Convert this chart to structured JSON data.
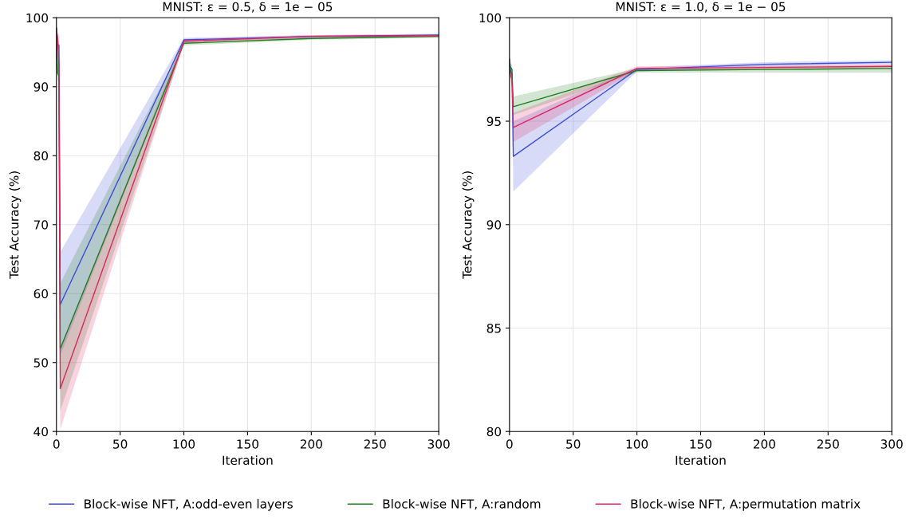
{
  "chart_data": [
    {
      "type": "line",
      "title": "MNIST: ε = 0.5, δ = 1e − 05",
      "xlabel": "Iteration",
      "ylabel": "Test Accuracy (%)",
      "xlim": [
        0,
        300
      ],
      "ylim": [
        40,
        100
      ],
      "xticks": [
        0,
        50,
        100,
        150,
        200,
        250,
        300
      ],
      "yticks": [
        40,
        50,
        60,
        70,
        80,
        90,
        100
      ],
      "grid": true,
      "legend": "bottom",
      "series": [
        {
          "name": "Block-wise NFT, A:odd-even layers",
          "color": "#3b4ad8",
          "x": [
            0,
            1,
            2,
            3,
            100,
            200,
            300
          ],
          "values": [
            98.5,
            96.2,
            96.0,
            58.4,
            96.8,
            97.3,
            97.5
          ],
          "lower": [
            98.0,
            95.5,
            95.3,
            51.0,
            96.5,
            97.1,
            97.3
          ],
          "upper": [
            99.0,
            96.8,
            96.6,
            66.0,
            97.1,
            97.5,
            97.7
          ]
        },
        {
          "name": "Block-wise NFT, A:random",
          "color": "#1e7d1e",
          "x": [
            0,
            1,
            2,
            3,
            100,
            200,
            300
          ],
          "values": [
            98.0,
            92.0,
            91.5,
            52.0,
            96.3,
            97.0,
            97.3
          ],
          "lower": [
            97.5,
            91.0,
            90.5,
            43.0,
            96.0,
            96.8,
            97.1
          ],
          "upper": [
            98.5,
            93.0,
            92.5,
            61.5,
            96.6,
            97.2,
            97.5
          ]
        },
        {
          "name": "Block-wise NFT, A:permutation matrix",
          "color": "#e0245e",
          "x": [
            0,
            1,
            2,
            3,
            100,
            200,
            300
          ],
          "values": [
            98.5,
            97.0,
            93.0,
            46.2,
            96.6,
            97.3,
            97.4
          ],
          "lower": [
            98.0,
            96.3,
            92.0,
            40.3,
            96.3,
            97.1,
            97.2
          ],
          "upper": [
            99.0,
            97.6,
            94.0,
            52.0,
            96.9,
            97.5,
            97.6
          ]
        }
      ]
    },
    {
      "type": "line",
      "title": "MNIST: ε = 1.0, δ = 1e − 05",
      "xlabel": "Iteration",
      "ylabel": "Test Accuracy (%)",
      "xlim": [
        0,
        300
      ],
      "ylim": [
        80,
        100
      ],
      "xticks": [
        0,
        50,
        100,
        150,
        200,
        250,
        300
      ],
      "yticks": [
        80,
        85,
        90,
        95,
        100
      ],
      "grid": true,
      "series": [
        {
          "color": "#3b4ad8",
          "x": [
            0,
            1,
            2,
            3,
            100,
            200,
            300
          ],
          "values": [
            97.7,
            97.6,
            97.5,
            93.3,
            97.5,
            97.75,
            97.85
          ],
          "lower": [
            97.5,
            97.3,
            97.2,
            91.6,
            97.4,
            97.65,
            97.75
          ],
          "upper": [
            98.2,
            97.8,
            97.7,
            95.0,
            97.6,
            97.85,
            97.95
          ]
        },
        {
          "color": "#1e7d1e",
          "x": [
            0,
            1,
            2,
            3,
            100,
            200,
            300
          ],
          "values": [
            98.0,
            97.4,
            97.3,
            95.7,
            97.45,
            97.5,
            97.55
          ],
          "lower": [
            97.8,
            97.1,
            97.0,
            95.3,
            97.35,
            97.35,
            97.35
          ],
          "upper": [
            98.2,
            97.6,
            97.5,
            96.2,
            97.55,
            97.65,
            97.7
          ]
        },
        {
          "color": "#e0245e",
          "x": [
            0,
            1,
            2,
            3,
            100,
            200,
            300
          ],
          "values": [
            97.5,
            97.2,
            97.0,
            94.7,
            97.55,
            97.6,
            97.65
          ],
          "lower": [
            97.3,
            96.9,
            96.7,
            94.0,
            97.45,
            97.5,
            97.55
          ],
          "upper": [
            97.7,
            97.4,
            97.3,
            95.4,
            97.65,
            97.7,
            97.75
          ]
        }
      ]
    }
  ]
}
